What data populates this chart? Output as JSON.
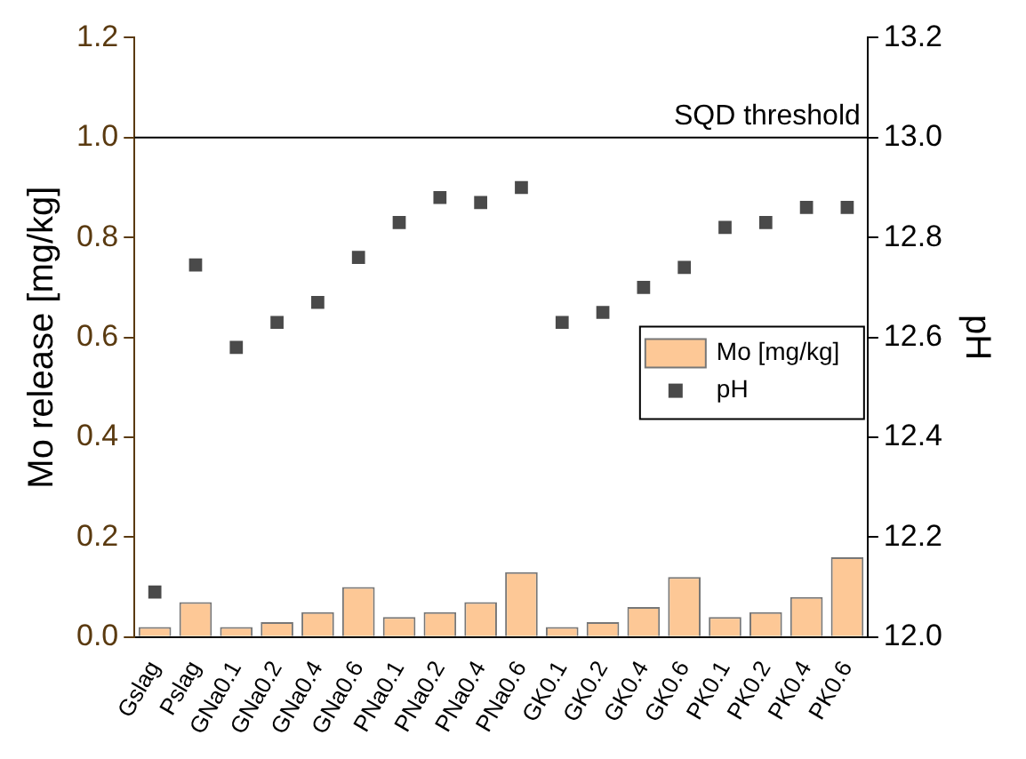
{
  "chart_data": {
    "type": "bar",
    "categories": [
      "Gslag",
      "Pslag",
      "GNa0.1",
      "GNa0.2",
      "GNa0.4",
      "GNa0.6",
      "PNa0.1",
      "PNa0.2",
      "PNa0.4",
      "PNa0.6",
      "GK0.1",
      "GK0.2",
      "GK0.4",
      "GK0.6",
      "PK0.1",
      "PK0.2",
      "PK0.4",
      "PK0.6"
    ],
    "series": [
      {
        "name": "Mo [mg/kg]",
        "color": "#fdc896",
        "values": [
          0.02,
          0.07,
          0.02,
          0.03,
          0.05,
          0.1,
          0.04,
          0.05,
          0.07,
          0.13,
          0.02,
          0.03,
          0.06,
          0.12,
          0.04,
          0.05,
          0.08,
          0.16
        ]
      },
      {
        "name": "pH",
        "type": "scatter",
        "axis": "y2",
        "color": "#4a4a4a",
        "x": [
          "Gslag",
          "Pslag",
          "GNa0.1",
          "GNa0.2",
          "GNa0.4",
          "GNa0.6",
          "PNa0.1",
          "PNa0.2",
          "PNa0.4",
          "PNa0.6",
          "GK0.1",
          "GK0.2",
          "GK0.4",
          "GK0.6",
          "PK0.1",
          "PK0.2",
          "PK0.4",
          "PK0.6"
        ],
        "values": [
          12.09,
          12.745,
          12.58,
          12.63,
          12.67,
          12.76,
          12.83,
          12.88,
          12.87,
          12.9,
          12.63,
          12.65,
          12.7,
          12.74,
          12.82,
          12.83,
          12.86,
          12.86
        ]
      }
    ],
    "ylabel": "Mo release [mg/kg]",
    "y2label": "pH",
    "ylim": [
      0,
      1.2
    ],
    "yticks": [
      {
        "value": 0,
        "label": "0.0"
      },
      {
        "value": 0.2,
        "label": "0.2"
      },
      {
        "value": 0.4,
        "label": "0.4"
      },
      {
        "value": 0.6,
        "label": "0.6"
      },
      {
        "value": 0.8,
        "label": "0.8"
      },
      {
        "value": 1,
        "label": "1.0"
      },
      {
        "value": 1.2,
        "label": "1.2"
      }
    ],
    "y2lim": [
      12,
      13.2
    ],
    "y2ticks": [
      {
        "value": 12,
        "label": "12.0"
      },
      {
        "value": 12.2,
        "label": "12.2"
      },
      {
        "value": 12.4,
        "label": "12.4"
      },
      {
        "value": 12.6,
        "label": "12.6"
      },
      {
        "value": 12.8,
        "label": "12.8"
      },
      {
        "value": 13,
        "label": "13.0"
      },
      {
        "value": 13.2,
        "label": "13.2"
      }
    ],
    "ref_lines": [
      {
        "axis": "y",
        "value": 1,
        "label": "SQD threshold",
        "color": "#000000"
      }
    ],
    "marker": "square",
    "grid": false,
    "legend": "right"
  }
}
